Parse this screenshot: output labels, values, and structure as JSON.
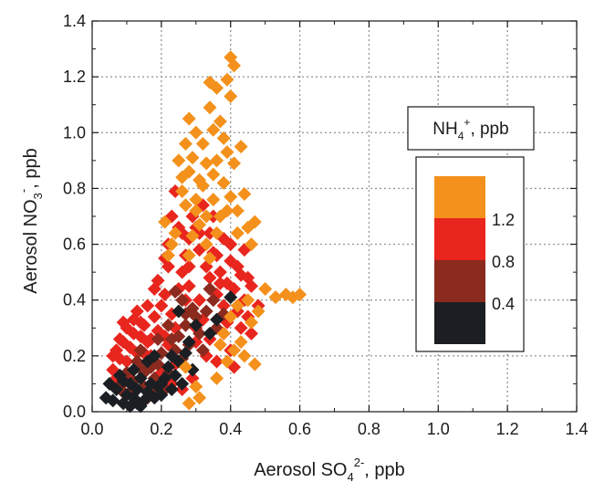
{
  "chart_data": {
    "type": "scatter",
    "xlabel": {
      "base": "Aerosol SO",
      "sub": "4",
      "sup": "2-",
      "suffix": ",  ppb"
    },
    "ylabel": {
      "base": "Aerosol NO",
      "sub": "3",
      "sup": "-",
      "suffix": ",  ppb"
    },
    "xlim": [
      0.0,
      1.4
    ],
    "ylim": [
      0.0,
      1.4
    ],
    "xticks": [
      "0.0",
      "0.2",
      "0.4",
      "0.6",
      "0.8",
      "1.0",
      "1.2",
      "1.4"
    ],
    "yticks": [
      "0.0",
      "0.2",
      "0.4",
      "0.6",
      "0.8",
      "1.0",
      "1.2",
      "1.4"
    ],
    "grid": true,
    "marker": "diamond",
    "color_scale": {
      "title": {
        "base": "NH",
        "sub": "4",
        "sup": "+",
        "suffix": ", ppb"
      },
      "labels": [
        "1.2",
        "0.8",
        "0.4"
      ],
      "bins": [
        {
          "range": "<0.4",
          "color": "#1b1f23"
        },
        {
          "range": "0.4-0.8",
          "color": "#8b2a1e"
        },
        {
          "range": "0.8-1.2",
          "color": "#e8261e"
        },
        {
          "range": ">1.2",
          "color": "#f3911c"
        }
      ]
    },
    "series": [
      {
        "color": "#1b1f23",
        "points": [
          [
            0.04,
            0.05
          ],
          [
            0.06,
            0.04
          ],
          [
            0.07,
            0.08
          ],
          [
            0.08,
            0.13
          ],
          [
            0.05,
            0.1
          ],
          [
            0.09,
            0.03
          ],
          [
            0.1,
            0.06
          ],
          [
            0.11,
            0.1
          ],
          [
            0.12,
            0.05
          ],
          [
            0.13,
            0.08
          ],
          [
            0.14,
            0.12
          ],
          [
            0.15,
            0.04
          ],
          [
            0.16,
            0.07
          ],
          [
            0.17,
            0.1
          ],
          [
            0.13,
            0.03
          ],
          [
            0.18,
            0.05
          ],
          [
            0.19,
            0.09
          ],
          [
            0.2,
            0.06
          ],
          [
            0.21,
            0.12
          ],
          [
            0.22,
            0.16
          ],
          [
            0.23,
            0.08
          ],
          [
            0.24,
            0.13
          ],
          [
            0.25,
            0.18
          ],
          [
            0.26,
            0.1
          ],
          [
            0.27,
            0.21
          ],
          [
            0.28,
            0.25
          ],
          [
            0.29,
            0.15
          ],
          [
            0.3,
            0.31
          ],
          [
            0.36,
            0.33
          ],
          [
            0.4,
            0.41
          ],
          [
            0.34,
            0.28
          ],
          [
            0.25,
            0.36
          ],
          [
            0.18,
            0.2
          ],
          [
            0.16,
            0.18
          ],
          [
            0.12,
            0.15
          ],
          [
            0.14,
            0.02
          ],
          [
            0.2,
            0.1
          ],
          [
            0.23,
            0.2
          ],
          [
            0.09,
            0.11
          ],
          [
            0.11,
            0.02
          ]
        ]
      },
      {
        "color": "#8b2a1e",
        "points": [
          [
            0.08,
            0.09
          ],
          [
            0.1,
            0.14
          ],
          [
            0.11,
            0.07
          ],
          [
            0.13,
            0.18
          ],
          [
            0.14,
            0.22
          ],
          [
            0.15,
            0.14
          ],
          [
            0.16,
            0.05
          ],
          [
            0.17,
            0.16
          ],
          [
            0.18,
            0.12
          ],
          [
            0.19,
            0.17
          ],
          [
            0.2,
            0.21
          ],
          [
            0.21,
            0.08
          ],
          [
            0.22,
            0.14
          ],
          [
            0.23,
            0.26
          ],
          [
            0.24,
            0.22
          ],
          [
            0.25,
            0.27
          ],
          [
            0.26,
            0.19
          ],
          [
            0.27,
            0.31
          ],
          [
            0.28,
            0.24
          ],
          [
            0.29,
            0.37
          ],
          [
            0.3,
            0.34
          ],
          [
            0.31,
            0.28
          ],
          [
            0.32,
            0.22
          ],
          [
            0.24,
            0.43
          ],
          [
            0.26,
            0.4
          ],
          [
            0.33,
            0.36
          ],
          [
            0.35,
            0.4
          ],
          [
            0.38,
            0.35
          ],
          [
            0.22,
            0.31
          ],
          [
            0.12,
            0.11
          ],
          [
            0.09,
            0.07
          ],
          [
            0.15,
            0.09
          ],
          [
            0.19,
            0.26
          ],
          [
            0.27,
            0.35
          ],
          [
            0.34,
            0.44
          ],
          [
            0.36,
            0.3
          ],
          [
            0.18,
            0.08
          ],
          [
            0.14,
            0.16
          ]
        ]
      },
      {
        "color": "#e8261e",
        "points": [
          [
            0.06,
            0.15
          ],
          [
            0.07,
            0.22
          ],
          [
            0.08,
            0.19
          ],
          [
            0.09,
            0.25
          ],
          [
            0.1,
            0.18
          ],
          [
            0.11,
            0.23
          ],
          [
            0.12,
            0.28
          ],
          [
            0.13,
            0.21
          ],
          [
            0.14,
            0.27
          ],
          [
            0.15,
            0.31
          ],
          [
            0.16,
            0.25
          ],
          [
            0.17,
            0.2
          ],
          [
            0.18,
            0.34
          ],
          [
            0.19,
            0.29
          ],
          [
            0.2,
            0.38
          ],
          [
            0.21,
            0.27
          ],
          [
            0.22,
            0.24
          ],
          [
            0.23,
            0.35
          ],
          [
            0.24,
            0.3
          ],
          [
            0.25,
            0.44
          ],
          [
            0.26,
            0.5
          ],
          [
            0.27,
            0.56
          ],
          [
            0.28,
            0.62
          ],
          [
            0.29,
            0.7
          ],
          [
            0.3,
            0.66
          ],
          [
            0.31,
            0.58
          ],
          [
            0.32,
            0.74
          ],
          [
            0.33,
            0.52
          ],
          [
            0.34,
            0.48
          ],
          [
            0.35,
            0.57
          ],
          [
            0.36,
            0.42
          ],
          [
            0.37,
            0.5
          ],
          [
            0.38,
            0.38
          ],
          [
            0.39,
            0.46
          ],
          [
            0.4,
            0.54
          ],
          [
            0.41,
            0.44
          ],
          [
            0.42,
            0.36
          ],
          [
            0.43,
            0.49
          ],
          [
            0.44,
            0.4
          ],
          [
            0.45,
            0.34
          ],
          [
            0.46,
            0.45
          ],
          [
            0.24,
            0.79
          ],
          [
            0.22,
            0.6
          ],
          [
            0.23,
            0.7
          ],
          [
            0.21,
            0.55
          ],
          [
            0.26,
            0.64
          ],
          [
            0.28,
            0.45
          ],
          [
            0.31,
            0.4
          ],
          [
            0.34,
            0.64
          ],
          [
            0.36,
            0.56
          ],
          [
            0.38,
            0.62
          ],
          [
            0.4,
            0.6
          ],
          [
            0.42,
            0.52
          ],
          [
            0.44,
            0.58
          ],
          [
            0.18,
            0.44
          ],
          [
            0.16,
            0.38
          ],
          [
            0.12,
            0.33
          ],
          [
            0.1,
            0.3
          ],
          [
            0.08,
            0.26
          ],
          [
            0.3,
            0.3
          ],
          [
            0.32,
            0.33
          ],
          [
            0.34,
            0.26
          ],
          [
            0.38,
            0.28
          ],
          [
            0.4,
            0.22
          ],
          [
            0.41,
            0.16
          ],
          [
            0.39,
            0.32
          ],
          [
            0.46,
            0.28
          ],
          [
            0.48,
            0.38
          ],
          [
            0.36,
            0.18
          ],
          [
            0.33,
            0.2
          ],
          [
            0.29,
            0.12
          ],
          [
            0.26,
            0.08
          ],
          [
            0.23,
            0.1
          ],
          [
            0.2,
            0.14
          ],
          [
            0.17,
            0.26
          ],
          [
            0.14,
            0.32
          ],
          [
            0.11,
            0.12
          ],
          [
            0.07,
            0.12
          ],
          [
            0.06,
            0.2
          ],
          [
            0.09,
            0.32
          ],
          [
            0.13,
            0.36
          ],
          [
            0.19,
            0.47
          ],
          [
            0.21,
            0.42
          ],
          [
            0.27,
            0.4
          ],
          [
            0.31,
            0.64
          ],
          [
            0.35,
            0.7
          ],
          [
            0.25,
            0.66
          ],
          [
            0.22,
            0.52
          ],
          [
            0.28,
            0.52
          ],
          [
            0.37,
            0.46
          ],
          [
            0.43,
            0.3
          ],
          [
            0.45,
            0.48
          ],
          [
            0.3,
            0.25
          ],
          [
            0.24,
            0.17
          ],
          [
            0.19,
            0.07
          ],
          [
            0.15,
            0.21
          ]
        ]
      },
      {
        "color": "#f3911c",
        "points": [
          [
            0.4,
            1.27
          ],
          [
            0.41,
            1.24
          ],
          [
            0.39,
            1.19
          ],
          [
            0.4,
            1.13
          ],
          [
            0.36,
            1.16
          ],
          [
            0.34,
            1.09
          ],
          [
            0.37,
            1.04
          ],
          [
            0.38,
            0.98
          ],
          [
            0.35,
            1.01
          ],
          [
            0.32,
            0.96
          ],
          [
            0.33,
            0.89
          ],
          [
            0.31,
            0.83
          ],
          [
            0.3,
            0.76
          ],
          [
            0.29,
            0.91
          ],
          [
            0.28,
            0.86
          ],
          [
            0.36,
            0.9
          ],
          [
            0.38,
            0.82
          ],
          [
            0.41,
            0.89
          ],
          [
            0.43,
            0.95
          ],
          [
            0.4,
            0.77
          ],
          [
            0.42,
            0.72
          ],
          [
            0.44,
            0.78
          ],
          [
            0.45,
            0.66
          ],
          [
            0.47,
            0.68
          ],
          [
            0.46,
            0.6
          ],
          [
            0.37,
            0.7
          ],
          [
            0.35,
            0.76
          ],
          [
            0.33,
            0.7
          ],
          [
            0.31,
            0.67
          ],
          [
            0.29,
            0.63
          ],
          [
            0.27,
            0.74
          ],
          [
            0.26,
            0.79
          ],
          [
            0.24,
            0.64
          ],
          [
            0.23,
            0.6
          ],
          [
            0.21,
            0.68
          ],
          [
            0.22,
            0.56
          ],
          [
            0.5,
            0.44
          ],
          [
            0.53,
            0.41
          ],
          [
            0.56,
            0.42
          ],
          [
            0.58,
            0.41
          ],
          [
            0.6,
            0.42
          ],
          [
            0.45,
            0.4
          ],
          [
            0.48,
            0.36
          ],
          [
            0.46,
            0.32
          ],
          [
            0.42,
            0.38
          ],
          [
            0.4,
            0.34
          ],
          [
            0.38,
            0.28
          ],
          [
            0.43,
            0.25
          ],
          [
            0.41,
            0.22
          ],
          [
            0.39,
            0.18
          ],
          [
            0.44,
            0.2
          ],
          [
            0.47,
            0.17
          ],
          [
            0.37,
            0.24
          ],
          [
            0.3,
            0.09
          ],
          [
            0.27,
            0.16
          ],
          [
            0.31,
            0.05
          ],
          [
            0.28,
            0.03
          ],
          [
            0.36,
            0.12
          ],
          [
            0.3,
            1.0
          ],
          [
            0.28,
            1.05
          ],
          [
            0.27,
            0.96
          ],
          [
            0.25,
            0.9
          ],
          [
            0.34,
            1.18
          ],
          [
            0.26,
            0.84
          ],
          [
            0.32,
            0.81
          ],
          [
            0.39,
            0.93
          ],
          [
            0.35,
            0.85
          ],
          [
            0.3,
            0.72
          ],
          [
            0.36,
            0.64
          ],
          [
            0.39,
            0.72
          ],
          [
            0.42,
            0.64
          ],
          [
            0.33,
            0.6
          ],
          [
            0.28,
            0.56
          ],
          [
            0.34,
            0.55
          ]
        ]
      }
    ]
  }
}
